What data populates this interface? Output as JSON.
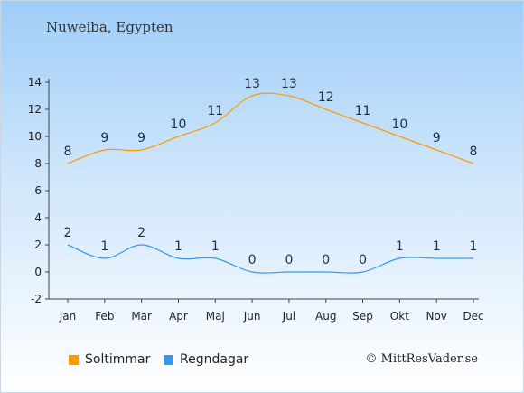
{
  "title": "Nuweiba, Egypten",
  "credit": "© MittResVader.se",
  "chart_data": {
    "type": "line",
    "categories": [
      "Jan",
      "Feb",
      "Mar",
      "Apr",
      "Maj",
      "Jun",
      "Jul",
      "Aug",
      "Sep",
      "Okt",
      "Nov",
      "Dec"
    ],
    "ylim": [
      -2,
      14
    ],
    "yticks": [
      -2,
      0,
      2,
      4,
      6,
      8,
      10,
      12,
      14
    ],
    "grid": false,
    "legend": "bottom-left",
    "series": [
      {
        "name": "Soltimmar",
        "color": "#ff9900",
        "values": [
          8,
          9,
          9,
          10,
          11,
          13,
          13,
          12,
          11,
          10,
          9,
          8
        ]
      },
      {
        "name": "Regndagar",
        "color": "#3399ee",
        "values": [
          2,
          1,
          2,
          1,
          1,
          0,
          0,
          0,
          0,
          1,
          1,
          1
        ]
      }
    ]
  }
}
